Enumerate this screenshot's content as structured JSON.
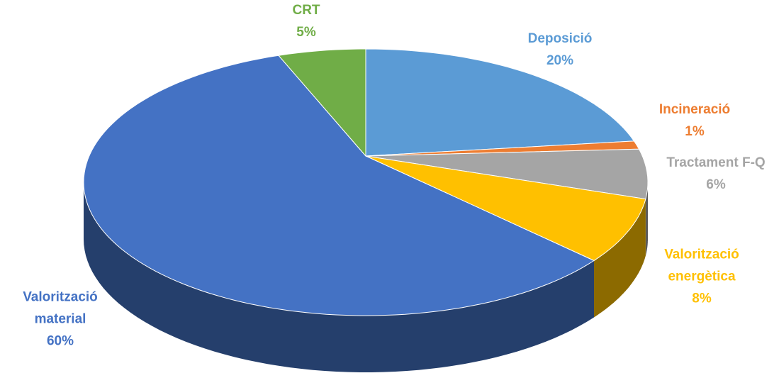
{
  "chart_data": {
    "type": "pie",
    "categories": [
      "Deposició",
      "Incineració",
      "Tractament F-Q",
      "Valorització energètica",
      "Valorització material",
      "CRT"
    ],
    "values": [
      20,
      1,
      6,
      8,
      60,
      5
    ],
    "value_labels": [
      "20%",
      "1%",
      "6%",
      "8%",
      "60%",
      "5%"
    ],
    "colors": [
      "#5b9bd5",
      "#ed7d31",
      "#a5a5a5",
      "#ffc000",
      "#4472c4",
      "#70ad47"
    ]
  }
}
